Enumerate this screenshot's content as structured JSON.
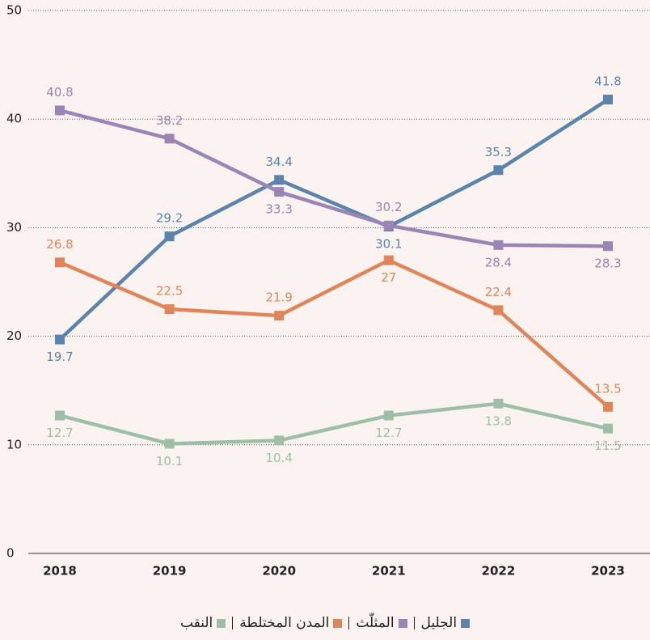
{
  "chart_data": {
    "type": "line",
    "x": [
      "2018",
      "2019",
      "2020",
      "2021",
      "2022",
      "2023"
    ],
    "series": [
      {
        "name": "الجليل",
        "color": "#5b84ad",
        "values": [
          19.7,
          29.2,
          34.4,
          30.1,
          35.3,
          41.8
        ]
      },
      {
        "name": "المثلّث",
        "color": "#9a85b5",
        "values": [
          40.8,
          38.2,
          33.3,
          30.2,
          28.4,
          28.3
        ]
      },
      {
        "name": "المدن المختلطة",
        "color": "#e0855a",
        "values": [
          26.8,
          22.5,
          21.9,
          27,
          22.4,
          13.5
        ]
      },
      {
        "name": "النقب",
        "color": "#9dbfa8",
        "values": [
          12.7,
          10.1,
          10.4,
          12.7,
          13.8,
          11.5
        ]
      }
    ],
    "ylim": [
      0,
      50
    ],
    "yticks": [
      0,
      10,
      20,
      30,
      40,
      50
    ],
    "grid": true,
    "legend": "bottom"
  }
}
